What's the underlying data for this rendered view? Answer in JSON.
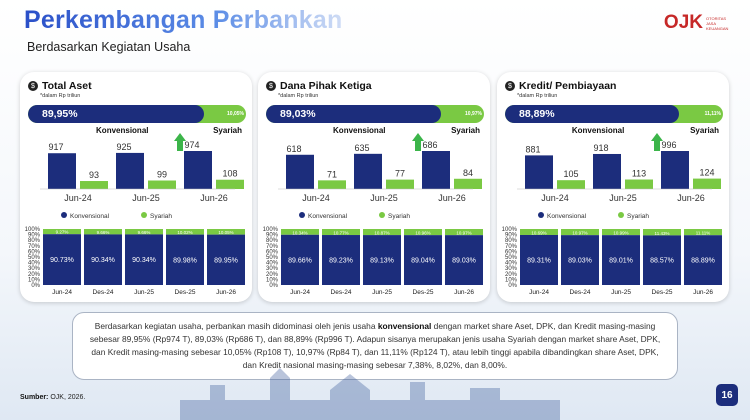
{
  "page": {
    "title": "Perkembangan Perbankan",
    "subtitle": "Berdasarkan Kegiatan Usaha",
    "logo": {
      "mark": "OJK",
      "text": "OTORITAS JASA KEUANGAN"
    },
    "source_label": "Sumber:",
    "source_text": " OJK, 2026.",
    "page_number": "16",
    "stray_mark": "1,",
    "description": {
      "p1": "Berdasarkan kegiatan usaha, perbankan masih didominasi oleh jenis usaha ",
      "bold": "konvensional",
      "p2": " dengan market share Aset, DPK, dan Kredit masing-masing sebesar 89,95% (Rp974 T), 89,03% (Rp686 T), dan 88,89% (Rp996 T). Adapun sisanya merupakan jenis usaha Syariah dengan market share Aset, DPK, dan Kredit masing-masing sebesar 10,05% (Rp108 T), 10,97% (Rp84 T), dan 11,11% (Rp124 T), atau lebih tinggi apabila dibandingkan share Aset, DPK, dan Kredit nasional masing-masing sebesar  7,38%,  8,02%, dan 8,00%."
    }
  },
  "colors": {
    "konvensional": "#1c2d7c",
    "syariah": "#7ac943",
    "arrow": "#3cb54a"
  },
  "chart_data": [
    {
      "type": "bar",
      "title": "Total Aset",
      "note": "*dalam Rp triliun",
      "share": {
        "konvensional_label": "89,95%",
        "syariah_label": "10,05%",
        "konvensional": 89.95,
        "label_k": "Konvensional",
        "label_s": "Syariah"
      },
      "categories": [
        "Jun-24",
        "Jun-25",
        "Jun-26"
      ],
      "series": [
        {
          "name": "Konvensional",
          "values": [
            917,
            925,
            974
          ]
        },
        {
          "name": "Syariah",
          "values": [
            93,
            99,
            108
          ]
        }
      ],
      "legend": "bottom",
      "stacked": {
        "categories": [
          "Jun-24",
          "Des-24",
          "Jun-25",
          "Des-25",
          "Jun-26"
        ],
        "konvensional": [
          90.73,
          90.34,
          90.34,
          89.98,
          89.95
        ],
        "syariah": [
          9.27,
          9.66,
          9.66,
          10.02,
          10.05
        ],
        "k_labels": [
          "90.73%",
          "90.34%",
          "90.34%",
          "89.98%",
          "89.95%"
        ],
        "s_labels": [
          "9.27%",
          "9.66%",
          "9.66%",
          "10.02%",
          "10.05%"
        ],
        "yticks": [
          "0%",
          "10%",
          "20%",
          "30%",
          "40%",
          "50%",
          "60%",
          "70%",
          "80%",
          "90%",
          "100%"
        ]
      }
    },
    {
      "type": "bar",
      "title": "Dana Pihak Ketiga",
      "note": "*dalam Rp triliun",
      "share": {
        "konvensional_label": "89,03%",
        "syariah_label": "10,97%",
        "konvensional": 89.03,
        "label_k": "Konvensional",
        "label_s": "Syariah"
      },
      "categories": [
        "Jun-24",
        "Jun-25",
        "Jun-26"
      ],
      "series": [
        {
          "name": "Konvensional",
          "values": [
            618,
            635,
            686
          ]
        },
        {
          "name": "Syariah",
          "values": [
            71,
            77,
            84
          ]
        }
      ],
      "legend": "bottom",
      "stacked": {
        "categories": [
          "Jun-24",
          "Des-24",
          "Jun-25",
          "Des-25",
          "Jun-26"
        ],
        "konvensional": [
          89.66,
          89.23,
          89.13,
          89.04,
          89.03
        ],
        "syariah": [
          10.34,
          10.77,
          10.87,
          10.96,
          10.97
        ],
        "k_labels": [
          "89.66%",
          "89.23%",
          "89.13%",
          "89.04%",
          "89.03%"
        ],
        "s_labels": [
          "10.34%",
          "10.77%",
          "10.87%",
          "10.96%",
          "10.97%"
        ],
        "yticks": [
          "0%",
          "10%",
          "20%",
          "30%",
          "40%",
          "50%",
          "60%",
          "70%",
          "80%",
          "90%",
          "100%"
        ]
      }
    },
    {
      "type": "bar",
      "title": "Kredit/ Pembiayaan",
      "note": "*dalam Rp triliun",
      "share": {
        "konvensional_label": "88,89%",
        "syariah_label": "11,11%",
        "konvensional": 88.89,
        "label_k": "Konvensional",
        "label_s": "Syariah"
      },
      "categories": [
        "Jun-24",
        "Jun-25",
        "Jun-26"
      ],
      "series": [
        {
          "name": "Konvensional",
          "values": [
            881,
            918,
            996
          ]
        },
        {
          "name": "Syariah",
          "values": [
            105,
            113,
            124
          ]
        }
      ],
      "legend": "bottom",
      "stacked": {
        "categories": [
          "Jun-24",
          "Des-24",
          "Jun-25",
          "Des-25",
          "Jun-26"
        ],
        "konvensional": [
          89.31,
          89.03,
          89.01,
          88.57,
          88.89
        ],
        "syariah": [
          10.69,
          10.97,
          10.99,
          11.43,
          11.11
        ],
        "k_labels": [
          "89.31%",
          "89.03%",
          "89.01%",
          "88.57%",
          "88.89%"
        ],
        "s_labels": [
          "10.69%",
          "10.97%",
          "10.99%",
          "11.43%",
          "11.11%"
        ],
        "yticks": [
          "0%",
          "10%",
          "20%",
          "30%",
          "40%",
          "50%",
          "60%",
          "70%",
          "80%",
          "90%",
          "100%"
        ]
      }
    }
  ]
}
